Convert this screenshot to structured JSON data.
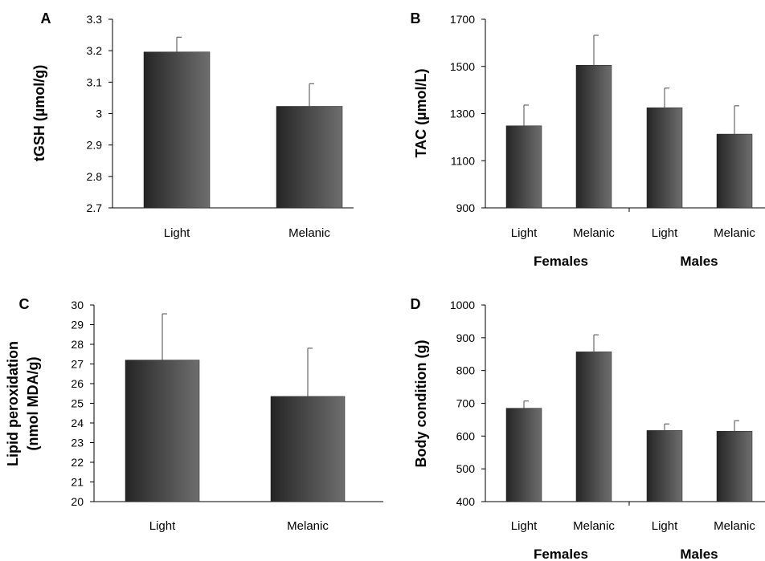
{
  "chart_data": [
    {
      "panel": "A",
      "type": "bar",
      "ylabel": "tGSH (µmol/g)",
      "ylim": [
        2.7,
        3.3
      ],
      "yticks": [
        "2.7",
        "2.8",
        "2.9",
        "3",
        "3.1",
        "3.2",
        "3.3"
      ],
      "categories": [
        "Light",
        "Melanic"
      ],
      "values": [
        3.196,
        3.023
      ],
      "errors": [
        0.047,
        0.072
      ],
      "groups": []
    },
    {
      "panel": "B",
      "type": "bar",
      "ylabel": "TAC (µmol/L)",
      "ylim": [
        900,
        1700
      ],
      "yticks": [
        "900",
        "1100",
        "1300",
        "1500",
        "1700"
      ],
      "categories": [
        "Light",
        "Melanic",
        "Light",
        "Melanic"
      ],
      "values": [
        1248,
        1505,
        1325,
        1213
      ],
      "errors": [
        88,
        127,
        83,
        120
      ],
      "groups": [
        "Females",
        "Males"
      ]
    },
    {
      "panel": "C",
      "type": "bar",
      "ylabel_lines": [
        "Lipid peroxidation",
        "(nmol MDA/g)"
      ],
      "ylim": [
        20,
        30
      ],
      "yticks": [
        "20",
        "21",
        "22",
        "23",
        "24",
        "25",
        "26",
        "27",
        "28",
        "29",
        "30"
      ],
      "categories": [
        "Light",
        "Melanic"
      ],
      "values": [
        27.2,
        25.35
      ],
      "errors": [
        2.35,
        2.45
      ],
      "groups": []
    },
    {
      "panel": "D",
      "type": "bar",
      "ylabel": "Body condition (g)",
      "ylim": [
        400,
        1000
      ],
      "yticks": [
        "400",
        "500",
        "600",
        "700",
        "800",
        "900",
        "1000"
      ],
      "categories": [
        "Light",
        "Melanic",
        "Light",
        "Melanic"
      ],
      "values": [
        685,
        857,
        617,
        615
      ],
      "errors": [
        22,
        52,
        20,
        32
      ],
      "groups": [
        "Females",
        "Males"
      ]
    }
  ],
  "colors": {
    "bar_dark": "#2a2a2a",
    "bar_light": "#6e6e6e",
    "axis": "#000000",
    "error": "#666666"
  }
}
